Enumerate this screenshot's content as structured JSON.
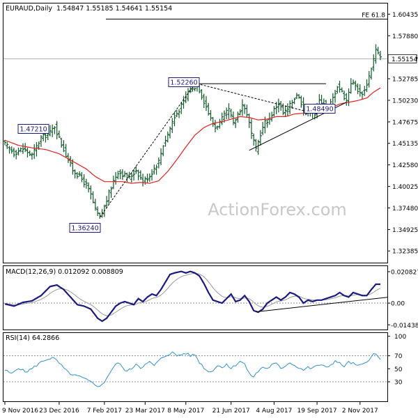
{
  "chart_data": [
    {
      "panel": "price",
      "type": "ohlc",
      "title": "EURAUD,Daily",
      "ohlc_header": "1.54847 1.55185 1.54641 1.55154",
      "watermark": "ActionForex.com",
      "ylim": [
        1.31,
        1.617
      ],
      "yticks": [
        "1.60435",
        "1.57880",
        "1.55325",
        "1.52785",
        "1.50230",
        "1.47675",
        "1.45135",
        "1.42580",
        "1.40025",
        "1.37480",
        "1.34925",
        "1.32385"
      ],
      "last_price": {
        "value": 1.55154,
        "label": "1.55154"
      },
      "fe_level": {
        "value": 1.5985,
        "label": "FE 61.8"
      },
      "annotations": [
        {
          "label": "1.47210",
          "value": 1.4721
        },
        {
          "label": "1.36240",
          "value": 1.3624
        },
        {
          "label": "1.52260",
          "value": 1.5226
        },
        {
          "label": "1.48490",
          "value": 1.4849
        }
      ],
      "anchors_close": [
        [
          0,
          1.45
        ],
        [
          4,
          1.44
        ],
        [
          8,
          1.445
        ],
        [
          12,
          1.437
        ],
        [
          16,
          1.458
        ],
        [
          20,
          1.464
        ],
        [
          22,
          1.472
        ],
        [
          24,
          1.457
        ],
        [
          27,
          1.438
        ],
        [
          30,
          1.42
        ],
        [
          33,
          1.412
        ],
        [
          36,
          1.402
        ],
        [
          38,
          1.39
        ],
        [
          40,
          1.372
        ],
        [
          42,
          1.363
        ],
        [
          44,
          1.376
        ],
        [
          46,
          1.392
        ],
        [
          48,
          1.407
        ],
        [
          50,
          1.418
        ],
        [
          52,
          1.415
        ],
        [
          55,
          1.41
        ],
        [
          58,
          1.42
        ],
        [
          61,
          1.406
        ],
        [
          64,
          1.413
        ],
        [
          66,
          1.422
        ],
        [
          68,
          1.43
        ],
        [
          70,
          1.45
        ],
        [
          72,
          1.462
        ],
        [
          74,
          1.477
        ],
        [
          76,
          1.487
        ],
        [
          79,
          1.5
        ],
        [
          81,
          1.512
        ],
        [
          83,
          1.516
        ],
        [
          85,
          1.522
        ],
        [
          87,
          1.508
        ],
        [
          89,
          1.495
        ],
        [
          91,
          1.48
        ],
        [
          93,
          1.47
        ],
        [
          95,
          1.476
        ],
        [
          97,
          1.484
        ],
        [
          99,
          1.491
        ],
        [
          101,
          1.474
        ],
        [
          103,
          1.486
        ],
        [
          105,
          1.497
        ],
        [
          107,
          1.487
        ],
        [
          109,
          1.462
        ],
        [
          111,
          1.443
        ],
        [
          113,
          1.463
        ],
        [
          115,
          1.476
        ],
        [
          117,
          1.481
        ],
        [
          119,
          1.491
        ],
        [
          121,
          1.5
        ],
        [
          123,
          1.487
        ],
        [
          125,
          1.491
        ],
        [
          127,
          1.501
        ],
        [
          129,
          1.51
        ],
        [
          131,
          1.5
        ],
        [
          133,
          1.487
        ],
        [
          135,
          1.492
        ],
        [
          137,
          1.486
        ],
        [
          139,
          1.502
        ],
        [
          141,
          1.5
        ],
        [
          143,
          1.493
        ],
        [
          145,
          1.505
        ],
        [
          147,
          1.52
        ],
        [
          149,
          1.512
        ],
        [
          151,
          1.502
        ],
        [
          153,
          1.524
        ],
        [
          155,
          1.52
        ],
        [
          157,
          1.51
        ],
        [
          159,
          1.514
        ],
        [
          161,
          1.531
        ],
        [
          163,
          1.551
        ],
        [
          164,
          1.562
        ],
        [
          165,
          1.557
        ],
        [
          166,
          1.552
        ]
      ],
      "ma_series": [
        [
          0,
          1.455
        ],
        [
          6,
          1.449
        ],
        [
          12,
          1.446
        ],
        [
          18,
          1.444
        ],
        [
          24,
          1.439
        ],
        [
          30,
          1.43
        ],
        [
          36,
          1.421
        ],
        [
          40,
          1.412
        ],
        [
          44,
          1.406
        ],
        [
          48,
          1.406
        ],
        [
          52,
          1.406
        ],
        [
          56,
          1.404
        ],
        [
          60,
          1.405
        ],
        [
          64,
          1.404
        ],
        [
          68,
          1.407
        ],
        [
          72,
          1.418
        ],
        [
          76,
          1.432
        ],
        [
          80,
          1.447
        ],
        [
          84,
          1.461
        ],
        [
          88,
          1.47
        ],
        [
          92,
          1.475
        ],
        [
          96,
          1.477
        ],
        [
          100,
          1.48
        ],
        [
          104,
          1.483
        ],
        [
          108,
          1.482
        ],
        [
          112,
          1.479
        ],
        [
          116,
          1.48
        ],
        [
          120,
          1.483
        ],
        [
          124,
          1.483
        ],
        [
          128,
          1.486
        ],
        [
          132,
          1.487
        ],
        [
          136,
          1.487
        ],
        [
          140,
          1.49
        ],
        [
          144,
          1.493
        ],
        [
          148,
          1.498
        ],
        [
          152,
          1.5
        ],
        [
          156,
          1.502
        ],
        [
          160,
          1.505
        ],
        [
          163,
          1.512
        ],
        [
          166,
          1.517
        ]
      ],
      "trendlines": [
        {
          "style": "dashed",
          "from": [
            42,
            1.364
          ],
          "to": [
            84,
            1.522
          ]
        },
        {
          "style": "dashed",
          "from": [
            85,
            1.522
          ],
          "to": [
            138,
            1.486
          ]
        },
        {
          "style": "solid",
          "from": [
            85,
            1.522
          ],
          "to": [
            142,
            1.522
          ]
        },
        {
          "style": "solid",
          "from": [
            108,
            1.443
          ],
          "to": [
            151,
            1.5
          ]
        }
      ]
    },
    {
      "panel": "macd",
      "type": "line",
      "title": "MACD(12,26,9) 0.012092 0.008809",
      "ylim": [
        -0.0175,
        0.0245
      ],
      "yticks": [
        "0.020827",
        "0.00",
        "-0.014386"
      ],
      "macd_anchors": [
        [
          0,
          -0.0005
        ],
        [
          4,
          -0.002
        ],
        [
          8,
          0.0005
        ],
        [
          12,
          0.0015
        ],
        [
          16,
          0.005
        ],
        [
          20,
          0.011
        ],
        [
          23,
          0.012
        ],
        [
          26,
          0.009
        ],
        [
          29,
          0.004
        ],
        [
          32,
          -0.001
        ],
        [
          35,
          -0.002
        ],
        [
          38,
          -0.004
        ],
        [
          41,
          -0.01
        ],
        [
          43,
          -0.012
        ],
        [
          45,
          -0.01
        ],
        [
          47,
          -0.006
        ],
        [
          49,
          -0.002
        ],
        [
          51,
          0.0
        ],
        [
          53,
          0.001
        ],
        [
          55,
          0.0
        ],
        [
          57,
          -0.001
        ],
        [
          59,
          0.003
        ],
        [
          61,
          0.001
        ],
        [
          63,
          0.004
        ],
        [
          65,
          0.006
        ],
        [
          67,
          0.005
        ],
        [
          69,
          0.009
        ],
        [
          71,
          0.014
        ],
        [
          73,
          0.019
        ],
        [
          75,
          0.02
        ],
        [
          78,
          0.021
        ],
        [
          80,
          0.02
        ],
        [
          82,
          0.021
        ],
        [
          84,
          0.02
        ],
        [
          86,
          0.018
        ],
        [
          88,
          0.013
        ],
        [
          90,
          0.007
        ],
        [
          92,
          0.002
        ],
        [
          94,
          0.001
        ],
        [
          96,
          0.0
        ],
        [
          98,
          0.003
        ],
        [
          100,
          0.006
        ],
        [
          102,
          0.001
        ],
        [
          104,
          0.002
        ],
        [
          106,
          0.005
        ],
        [
          108,
          0.001
        ],
        [
          110,
          -0.005
        ],
        [
          112,
          -0.006
        ],
        [
          114,
          -0.004
        ],
        [
          116,
          0.0
        ],
        [
          118,
          0.002
        ],
        [
          120,
          0.004
        ],
        [
          122,
          0.002
        ],
        [
          124,
          0.004
        ],
        [
          126,
          0.007
        ],
        [
          128,
          0.006
        ],
        [
          130,
          0.004
        ],
        [
          132,
          0.0
        ],
        [
          134,
          0.002
        ],
        [
          136,
          0.001
        ],
        [
          138,
          0.002
        ],
        [
          140,
          0.002
        ],
        [
          142,
          0.003
        ],
        [
          144,
          0.004
        ],
        [
          146,
          0.005
        ],
        [
          148,
          0.007
        ],
        [
          150,
          0.005
        ],
        [
          152,
          0.004
        ],
        [
          154,
          0.007
        ],
        [
          156,
          0.006
        ],
        [
          158,
          0.005
        ],
        [
          160,
          0.005
        ],
        [
          162,
          0.009
        ],
        [
          164,
          0.0125
        ],
        [
          166,
          0.0125
        ]
      ],
      "trendline": {
        "from": [
          111,
          -0.0058
        ],
        "to": [
          166,
          0.0034
        ]
      }
    },
    {
      "panel": "rsi",
      "type": "line",
      "title": "RSI(14) 64.2866",
      "ylim": [
        0,
        105
      ],
      "yticks": [
        "100",
        "70",
        "50",
        "30"
      ],
      "levels": [
        70,
        30
      ],
      "anchors": [
        [
          0,
          48
        ],
        [
          3,
          42
        ],
        [
          6,
          52
        ],
        [
          9,
          45
        ],
        [
          12,
          50
        ],
        [
          15,
          58
        ],
        [
          18,
          64
        ],
        [
          21,
          67
        ],
        [
          23,
          62
        ],
        [
          25,
          55
        ],
        [
          27,
          47
        ],
        [
          30,
          40
        ],
        [
          33,
          38
        ],
        [
          36,
          33
        ],
        [
          39,
          28
        ],
        [
          42,
          22
        ],
        [
          44,
          30
        ],
        [
          46,
          42
        ],
        [
          48,
          52
        ],
        [
          50,
          60
        ],
        [
          52,
          52
        ],
        [
          54,
          46
        ],
        [
          56,
          50
        ],
        [
          58,
          58
        ],
        [
          60,
          52
        ],
        [
          62,
          56
        ],
        [
          64,
          60
        ],
        [
          66,
          55
        ],
        [
          68,
          62
        ],
        [
          70,
          68
        ],
        [
          72,
          72
        ],
        [
          74,
          75
        ],
        [
          76,
          70
        ],
        [
          78,
          72
        ],
        [
          80,
          74
        ],
        [
          82,
          70
        ],
        [
          84,
          72
        ],
        [
          86,
          60
        ],
        [
          88,
          52
        ],
        [
          90,
          45
        ],
        [
          92,
          48
        ],
        [
          94,
          55
        ],
        [
          96,
          52
        ],
        [
          98,
          58
        ],
        [
          100,
          50
        ],
        [
          102,
          56
        ],
        [
          104,
          62
        ],
        [
          106,
          57
        ],
        [
          108,
          42
        ],
        [
          110,
          38
        ],
        [
          112,
          46
        ],
        [
          114,
          53
        ],
        [
          116,
          50
        ],
        [
          118,
          56
        ],
        [
          120,
          58
        ],
        [
          122,
          50
        ],
        [
          124,
          55
        ],
        [
          126,
          60
        ],
        [
          128,
          55
        ],
        [
          130,
          52
        ],
        [
          132,
          48
        ],
        [
          134,
          52
        ],
        [
          136,
          50
        ],
        [
          138,
          56
        ],
        [
          140,
          55
        ],
        [
          142,
          52
        ],
        [
          144,
          56
        ],
        [
          146,
          62
        ],
        [
          148,
          58
        ],
        [
          150,
          54
        ],
        [
          152,
          60
        ],
        [
          154,
          58
        ],
        [
          156,
          54
        ],
        [
          158,
          56
        ],
        [
          160,
          62
        ],
        [
          162,
          68
        ],
        [
          163,
          72
        ],
        [
          164,
          72
        ],
        [
          165,
          68
        ],
        [
          166,
          64
        ]
      ]
    }
  ],
  "x_axis": {
    "ticks": [
      {
        "label": "9 Nov 2016",
        "index": 0
      },
      {
        "label": "23 Dec 2016",
        "index": 24
      },
      {
        "label": "7 Feb 2017",
        "index": 44
      },
      {
        "label": "23 Mar 2017",
        "index": 62
      },
      {
        "label": "8 May 2017",
        "index": 80
      },
      {
        "label": "21 Jun 2017",
        "index": 100
      },
      {
        "label": "4 Aug 2017",
        "index": 119
      },
      {
        "label": "19 Sep 2017",
        "index": 138
      },
      {
        "label": "2 Nov 2017",
        "index": 157
      }
    ]
  },
  "colors": {
    "bars": "#0f5a28",
    "ma": "#e0201c",
    "macd": "#1a1a80",
    "signal": "#999999",
    "rsi": "#2f8fd0",
    "watermark": "#c8c8c8",
    "label_border": "#1a1a80",
    "grid": "#000000"
  }
}
